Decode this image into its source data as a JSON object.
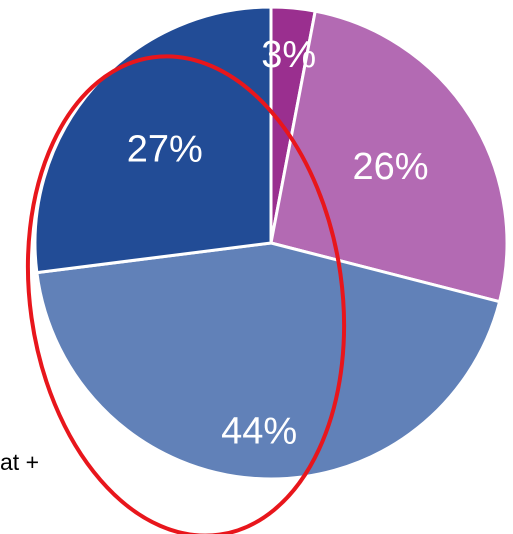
{
  "chart_data": {
    "type": "pie",
    "title": "",
    "slices": [
      {
        "label": "3%",
        "value": 3,
        "color": "#9a2f8f"
      },
      {
        "label": "26%",
        "value": 26,
        "color": "#b36ab3"
      },
      {
        "label": "44%",
        "value": 44,
        "color": "#6181b8"
      },
      {
        "label": "27%",
        "value": 27,
        "color": "#224c96"
      }
    ],
    "start_angle_deg": 0,
    "direction": "clockwise",
    "label_color": "#ffffff",
    "border_color": "#ffffff"
  },
  "annotation": {
    "shape": "ellipse",
    "color": "#e8161c"
  },
  "side_text": "at +"
}
